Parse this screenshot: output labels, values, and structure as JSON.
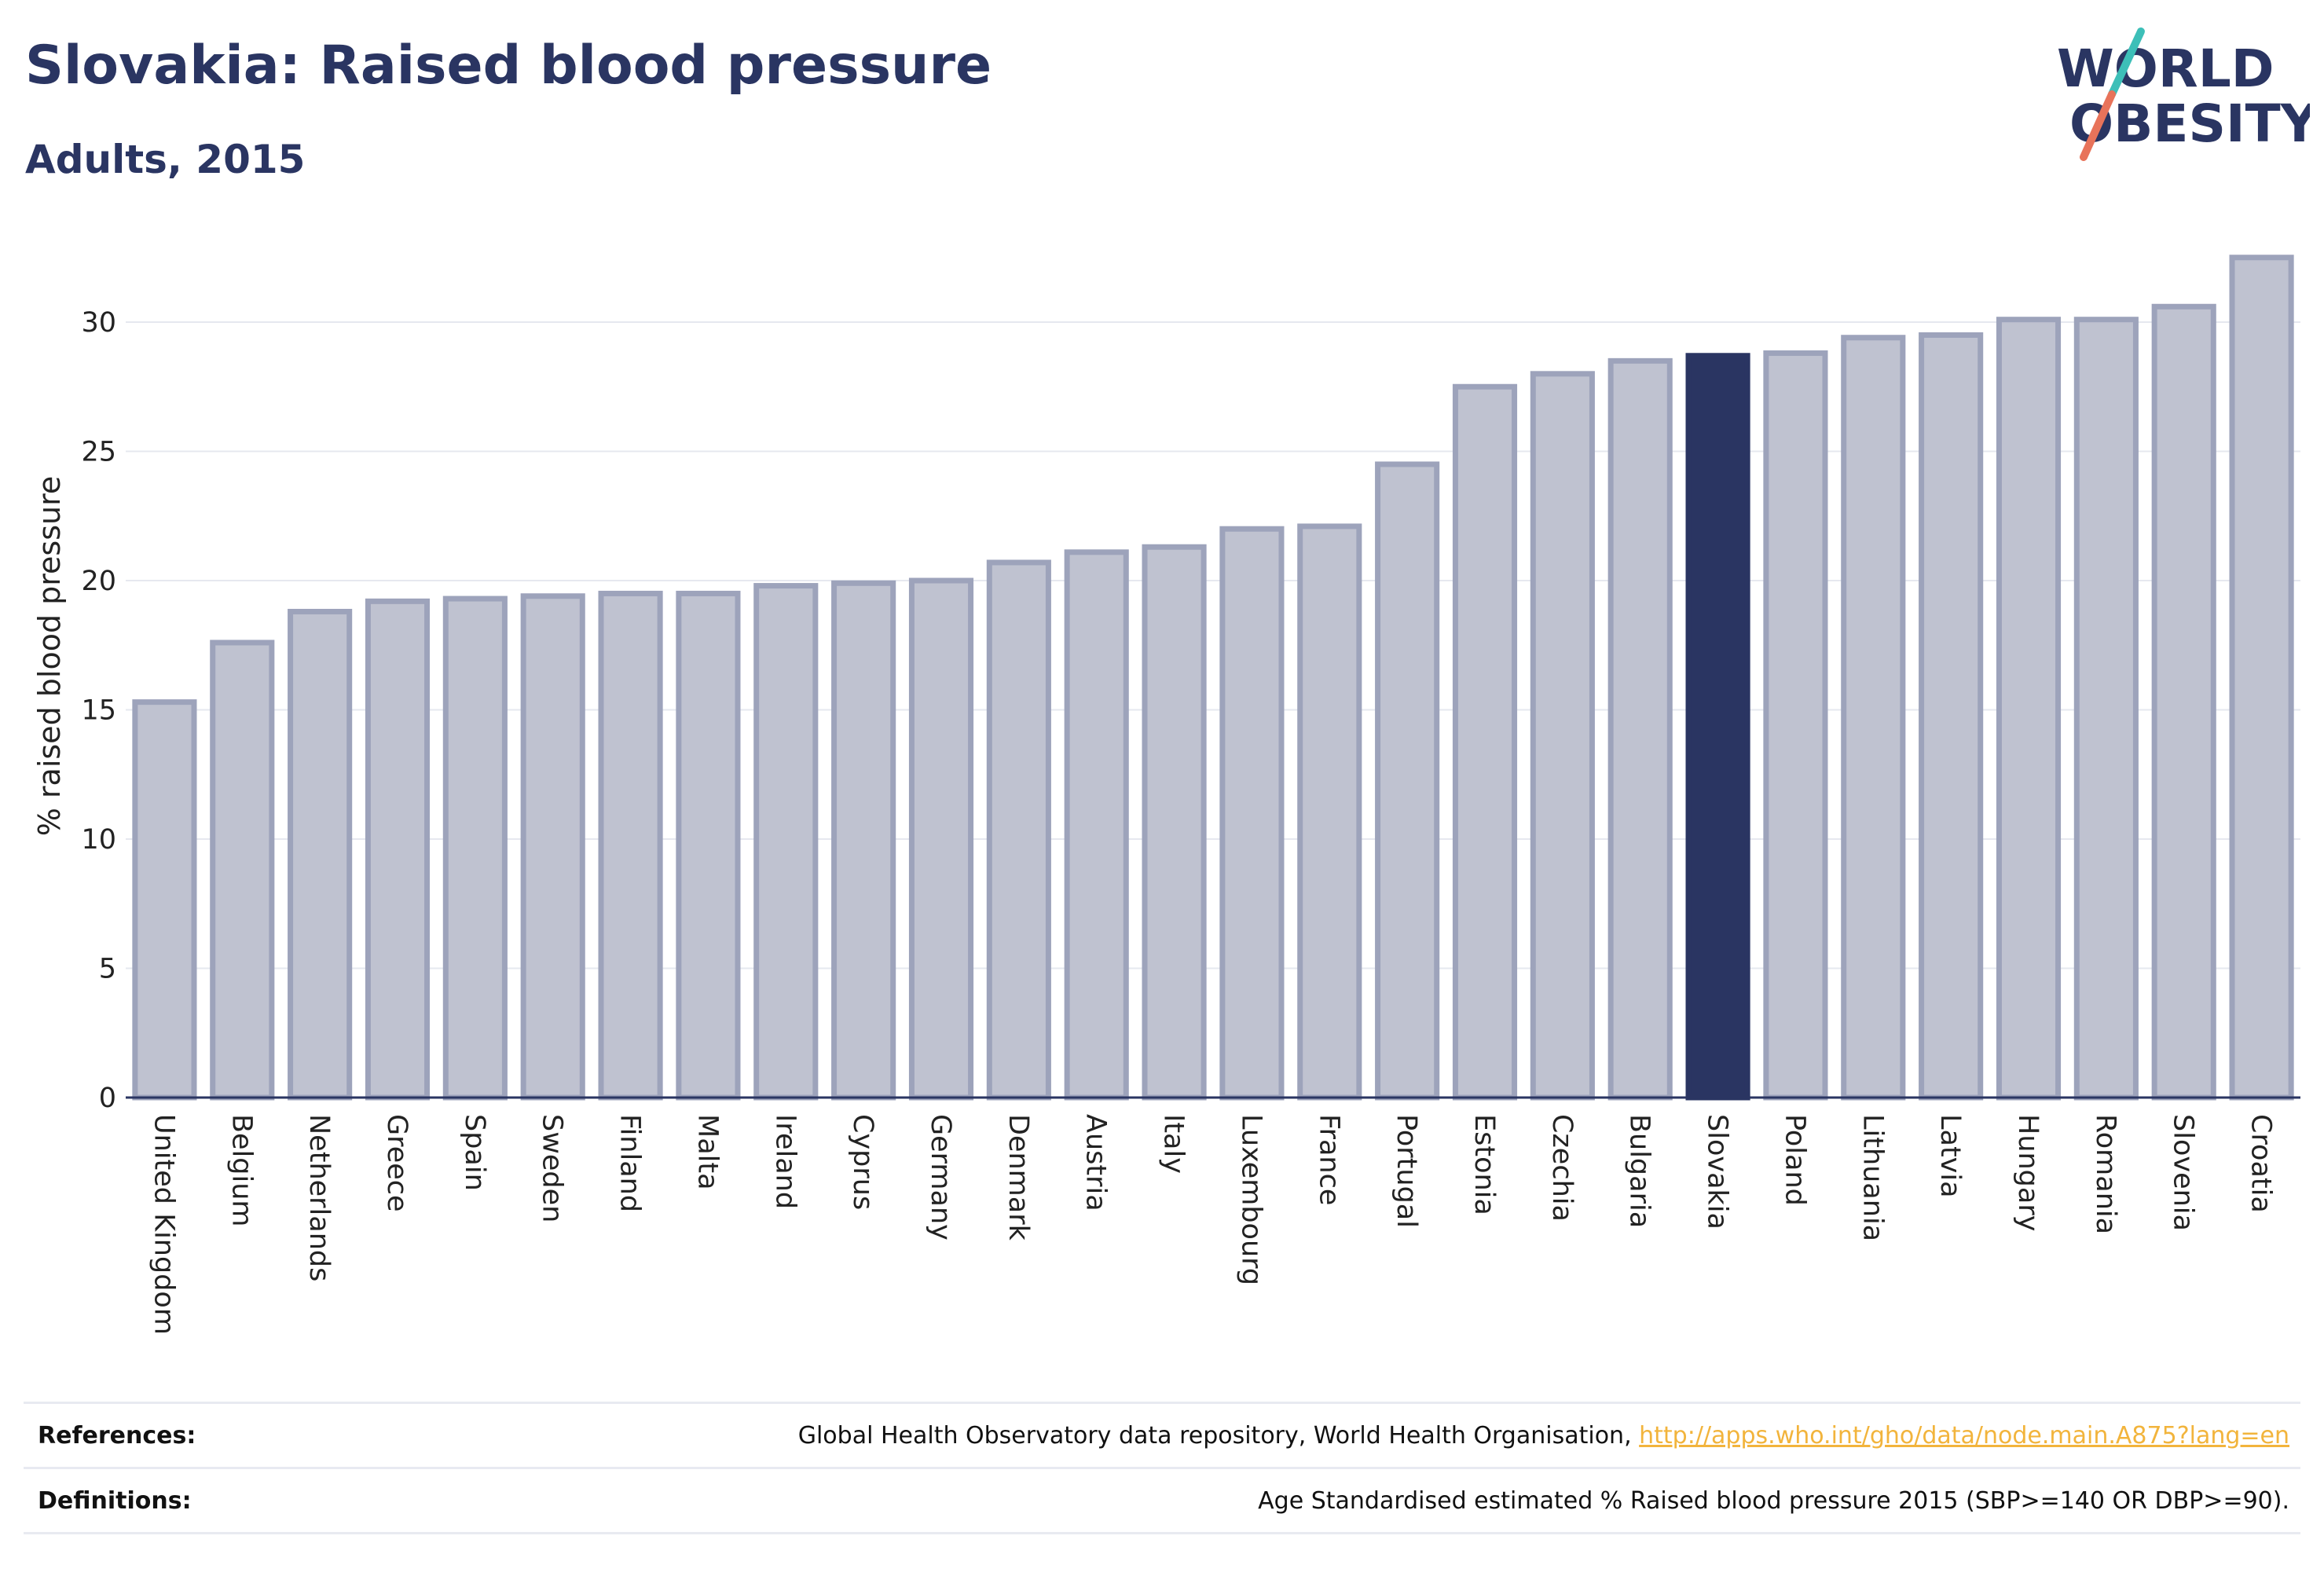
{
  "header": {
    "title": "Slovakia: Raised blood pressure",
    "subtitle": "Adults, 2015"
  },
  "logo": {
    "line1": "WORLD",
    "line2": "OBESITY",
    "colors": {
      "text": "#2a3562",
      "slash_top": "#3dbfb8",
      "slash_bottom": "#e8735a"
    }
  },
  "chart_data": {
    "type": "bar",
    "ylabel": "% raised blood pressure",
    "xlabel": "",
    "ylim": [
      0,
      33
    ],
    "yticks": [
      0,
      5,
      10,
      15,
      20,
      25,
      30
    ],
    "grid": true,
    "highlight": "Slovakia",
    "colors": {
      "bar": "#bfc2d0",
      "bar_edge": "#9da3bb",
      "highlight": "#2a3562"
    },
    "categories": [
      "United Kingdom",
      "Belgium",
      "Netherlands",
      "Greece",
      "Spain",
      "Sweden",
      "Finland",
      "Malta",
      "Ireland",
      "Cyprus",
      "Germany",
      "Denmark",
      "Austria",
      "Italy",
      "Luxembourg",
      "France",
      "Portugal",
      "Estonia",
      "Czechia",
      "Bulgaria",
      "Slovakia",
      "Poland",
      "Lithuania",
      "Latvia",
      "Hungary",
      "Romania",
      "Slovenia",
      "Croatia"
    ],
    "values": [
      15.3,
      17.6,
      18.8,
      19.2,
      19.3,
      19.4,
      19.5,
      19.5,
      19.8,
      19.9,
      20.0,
      20.7,
      21.1,
      21.3,
      22.0,
      22.1,
      24.5,
      27.5,
      28.0,
      28.5,
      28.7,
      28.8,
      29.4,
      29.5,
      30.1,
      30.1,
      30.6,
      32.5
    ]
  },
  "footer": {
    "references_label": "References:",
    "references_text": "Global Health Observatory data repository, World Health Organisation, ",
    "references_link": "http://apps.who.int/gho/data/node.main.A875?lang=en",
    "definitions_label": "Definitions:",
    "definitions_text": "Age Standardised estimated % Raised blood pressure 2015 (SBP>=140 OR DBP>=90)."
  }
}
